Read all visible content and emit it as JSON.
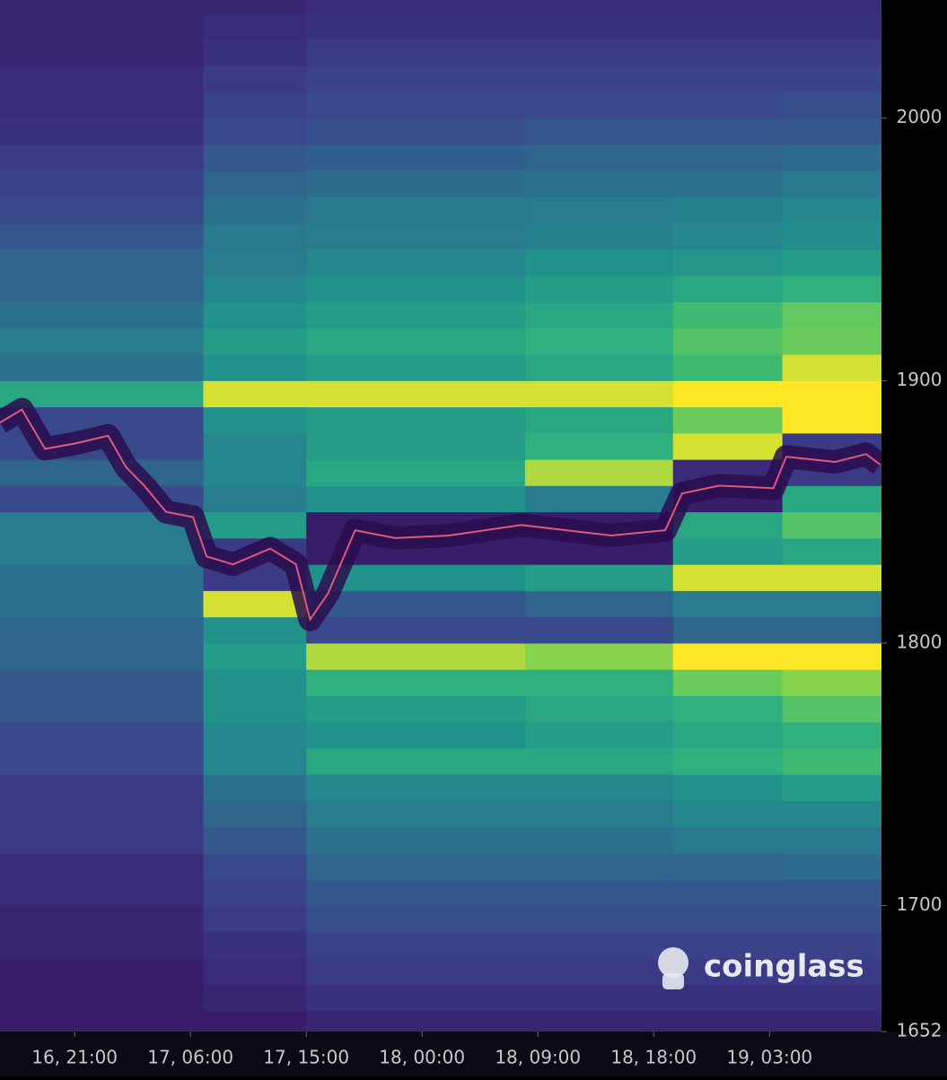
{
  "chart_data": {
    "type": "heatmap",
    "watermark": "coinglass",
    "xlim": [
      -5.8,
      62.7
    ],
    "xticks": [
      {
        "value": 0,
        "label": "16, 21:00"
      },
      {
        "value": 9,
        "label": "17, 06:00"
      },
      {
        "value": 18,
        "label": "17, 15:00"
      },
      {
        "value": 27,
        "label": "18, 00:00"
      },
      {
        "value": 36,
        "label": "18, 09:00"
      },
      {
        "value": 45,
        "label": "18, 18:00"
      },
      {
        "value": 54,
        "label": "19, 03:00"
      }
    ],
    "ylim": [
      1652,
      2045
    ],
    "yticks": [
      1652,
      1700,
      1800,
      1900,
      2000
    ],
    "zlim": [
      0,
      100
    ],
    "colorscale": [
      "#360e5e",
      "#3b3f8a",
      "#2c6e8e",
      "#21918c",
      "#2fb47c",
      "#7ad151",
      "#fde725"
    ],
    "x_edges": [
      -5.8,
      10,
      18,
      35,
      46.5,
      55,
      62.7
    ],
    "y_edges": [
      1652,
      1660,
      1670,
      1680,
      1690,
      1700,
      1710,
      1720,
      1730,
      1740,
      1750,
      1760,
      1770,
      1780,
      1790,
      1800,
      1810,
      1820,
      1830,
      1840,
      1850,
      1860,
      1870,
      1880,
      1890,
      1900,
      1910,
      1920,
      1930,
      1940,
      1950,
      1960,
      1970,
      1980,
      1990,
      2000,
      2010,
      2020,
      2030,
      2040,
      2045
    ],
    "z": [
      [
        5,
        5,
        8,
        8,
        8,
        8
      ],
      [
        5,
        8,
        12,
        12,
        12,
        12
      ],
      [
        5,
        10,
        15,
        15,
        15,
        15
      ],
      [
        8,
        12,
        18,
        18,
        18,
        18
      ],
      [
        8,
        15,
        22,
        22,
        22,
        22
      ],
      [
        10,
        18,
        25,
        25,
        25,
        25
      ],
      [
        10,
        20,
        30,
        30,
        30,
        32
      ],
      [
        15,
        25,
        35,
        35,
        38,
        38
      ],
      [
        15,
        30,
        40,
        40,
        45,
        45
      ],
      [
        15,
        35,
        45,
        45,
        50,
        55
      ],
      [
        20,
        45,
        60,
        60,
        65,
        70
      ],
      [
        20,
        45,
        50,
        55,
        60,
        65
      ],
      [
        25,
        50,
        55,
        60,
        65,
        75
      ],
      [
        25,
        50,
        65,
        65,
        80,
        85
      ],
      [
        30,
        55,
        90,
        85,
        100,
        100
      ],
      [
        30,
        50,
        20,
        20,
        30,
        30
      ],
      [
        35,
        95,
        25,
        30,
        40,
        40
      ],
      [
        35,
        15,
        50,
        55,
        95,
        95
      ],
      [
        40,
        15,
        5,
        5,
        55,
        60
      ],
      [
        40,
        55,
        5,
        5,
        60,
        75
      ],
      [
        20,
        40,
        50,
        40,
        5,
        60
      ],
      [
        30,
        45,
        60,
        90,
        10,
        15
      ],
      [
        20,
        45,
        55,
        65,
        95,
        15
      ],
      [
        20,
        50,
        55,
        60,
        80,
        100
      ],
      [
        60,
        95,
        95,
        95,
        100,
        100
      ],
      [
        35,
        50,
        55,
        60,
        70,
        95
      ],
      [
        40,
        55,
        60,
        65,
        75,
        80
      ],
      [
        35,
        50,
        55,
        60,
        70,
        78
      ],
      [
        30,
        45,
        50,
        55,
        60,
        65
      ],
      [
        30,
        40,
        45,
        50,
        52,
        55
      ],
      [
        25,
        38,
        40,
        42,
        45,
        48
      ],
      [
        20,
        35,
        38,
        40,
        42,
        45
      ],
      [
        18,
        30,
        33,
        35,
        35,
        38
      ],
      [
        15,
        25,
        28,
        30,
        30,
        32
      ],
      [
        12,
        20,
        22,
        24,
        24,
        25
      ],
      [
        10,
        18,
        20,
        20,
        20,
        22
      ],
      [
        10,
        15,
        18,
        18,
        18,
        18
      ],
      [
        8,
        12,
        15,
        15,
        15,
        15
      ],
      [
        8,
        10,
        12,
        12,
        12,
        12
      ],
      [
        8,
        8,
        10,
        10,
        10,
        10
      ]
    ],
    "series": [
      {
        "color": "#e0587a",
        "x": [
          -5.8,
          -4.1,
          -2.3,
          0,
          2.6,
          4,
          5.4,
          7.1,
          9.2,
          10.25,
          12.3,
          15.2,
          17.2,
          18.3,
          19.7,
          21.8,
          24.9,
          29.1,
          34.7,
          41.7,
          45.9,
          47.2,
          50.1,
          54.3,
          55.3,
          59.1,
          61.5,
          62.6
        ],
        "values": [
          1884,
          1889,
          1874,
          1876,
          1879,
          1867,
          1860,
          1850,
          1848,
          1833,
          1830,
          1836,
          1830,
          1809,
          1819,
          1843,
          1840,
          1841,
          1845,
          1841,
          1843,
          1857,
          1860,
          1859,
          1871,
          1869,
          1872,
          1868
        ]
      }
    ]
  }
}
